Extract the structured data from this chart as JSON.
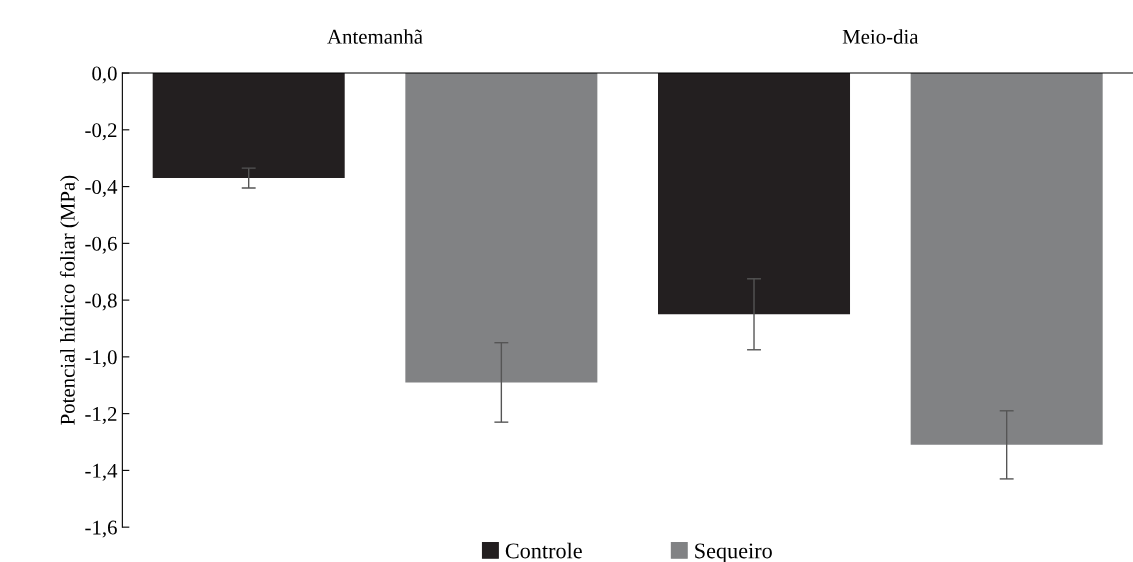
{
  "chart_data": {
    "type": "bar",
    "ylabel": "Potencial hídrico foliar (MPa)",
    "categories": [
      "Antemanhã",
      "Meio-dia"
    ],
    "series": [
      {
        "name": "Controle",
        "color": "#231f20",
        "values": [
          -0.37,
          -0.85
        ],
        "errors": [
          0.035,
          0.125
        ]
      },
      {
        "name": "Sequeiro",
        "color": "#818284",
        "values": [
          -1.09,
          -1.31
        ],
        "errors": [
          0.14,
          0.12
        ]
      }
    ],
    "ylim": [
      -1.6,
      0
    ],
    "yticks": [
      {
        "value": -1.6,
        "label": "-1,6"
      },
      {
        "value": -1.4,
        "label": "-1,4"
      },
      {
        "value": -1.2,
        "label": "-1,2"
      },
      {
        "value": -1.0,
        "label": "-1,0"
      },
      {
        "value": -0.8,
        "label": "-0,8"
      },
      {
        "value": -0.6,
        "label": "-0,6"
      },
      {
        "value": -0.4,
        "label": "-0,4"
      },
      {
        "value": -0.2,
        "label": "-0,2"
      },
      {
        "value": 0,
        "label": "0,0"
      }
    ],
    "grid": false,
    "legend": "bottom"
  }
}
